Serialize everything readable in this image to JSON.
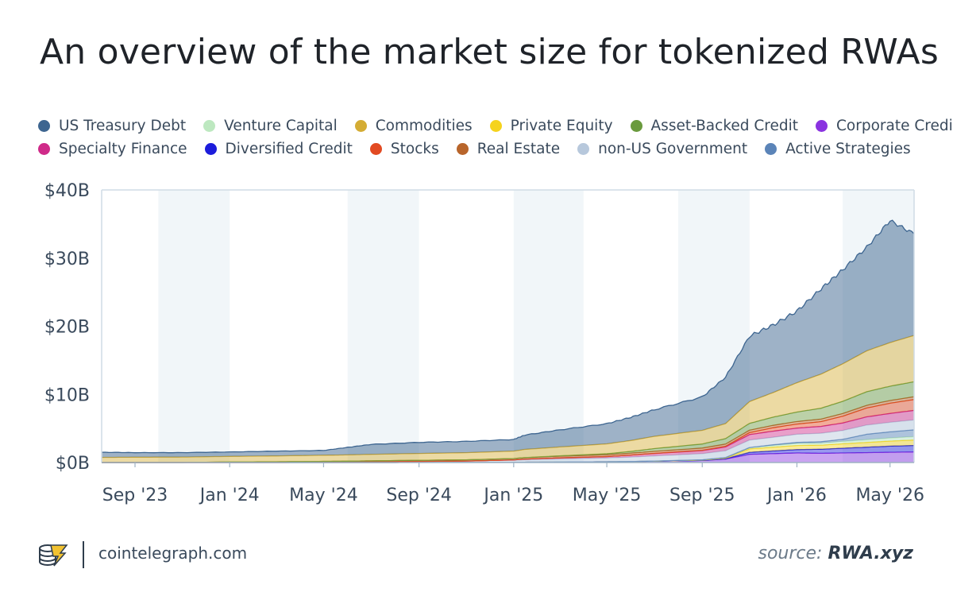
{
  "title": "An overview of the market size for tokenized RWAs",
  "footer": {
    "site": "cointelegraph.com",
    "source_prefix": "source:",
    "source_name": "RWA.xyz"
  },
  "chart_data": {
    "type": "area",
    "stacked": true,
    "title": "An overview of the market size for tokenized RWAs",
    "xlabel": "",
    "ylabel": "",
    "x_tick_labels": [
      "Sep '23",
      "Jan '24",
      "May '24",
      "Sep '24",
      "Jan '25",
      "May '25",
      "Sep '25",
      "Jan '26",
      "May '26"
    ],
    "y_tick_labels": [
      "$0B",
      "$10B",
      "$20B",
      "$30B",
      "$40B"
    ],
    "y_ticks": [
      0,
      10,
      20,
      30,
      40
    ],
    "ylim": [
      0,
      40
    ],
    "x_start": "2023-07-20",
    "x_end": "2026-06-01",
    "unit": "$B",
    "legend_position": "top",
    "shaded_bands": [
      [
        "2023-10-01",
        "2024-01-01"
      ],
      [
        "2024-06-01",
        "2024-09-01"
      ],
      [
        "2025-01-01",
        "2025-04-01"
      ],
      [
        "2025-08-01",
        "2025-11-01"
      ],
      [
        "2026-03-01",
        "2026-06-01"
      ]
    ],
    "dates": [
      "2023-07-20",
      "2023-09-01",
      "2023-11-01",
      "2024-01-01",
      "2024-03-01",
      "2024-05-01",
      "2024-06-01",
      "2024-07-01",
      "2024-09-01",
      "2024-11-01",
      "2025-01-01",
      "2025-01-15",
      "2025-03-01",
      "2025-05-01",
      "2025-06-01",
      "2025-07-01",
      "2025-09-01",
      "2025-10-01",
      "2025-11-01",
      "2025-12-01",
      "2026-01-01",
      "2026-02-01",
      "2026-03-01",
      "2026-04-01",
      "2026-05-01",
      "2026-06-01"
    ],
    "series": [
      {
        "name": "Corporate Credit",
        "color": "#8a33e0",
        "values": [
          0,
          0,
          0,
          0,
          0,
          0,
          0,
          0,
          0.01,
          0.02,
          0.03,
          0.05,
          0.08,
          0.12,
          0.15,
          0.2,
          0.3,
          0.5,
          1.2,
          1.3,
          1.4,
          1.35,
          1.4,
          1.45,
          1.5,
          1.55
        ]
      },
      {
        "name": "Diversified Credit",
        "color": "#1c1cdb",
        "values": [
          0,
          0,
          0,
          0,
          0,
          0,
          0,
          0,
          0,
          0,
          0,
          0,
          0,
          0,
          0,
          0,
          0,
          0.05,
          0.3,
          0.4,
          0.5,
          0.6,
          0.7,
          0.8,
          0.9,
          0.95
        ]
      },
      {
        "name": "Private Equity",
        "color": "#f5d31d",
        "values": [
          0,
          0,
          0,
          0,
          0,
          0,
          0,
          0,
          0,
          0,
          0,
          0,
          0,
          0,
          0,
          0,
          0.05,
          0.1,
          0.5,
          0.55,
          0.6,
          0.6,
          0.65,
          0.7,
          0.75,
          0.8
        ]
      },
      {
        "name": "Venture Capital",
        "color": "#bde8c0",
        "values": [
          0,
          0,
          0,
          0,
          0,
          0,
          0,
          0,
          0,
          0,
          0,
          0,
          0,
          0,
          0,
          0.02,
          0.05,
          0.08,
          0.2,
          0.25,
          0.3,
          0.3,
          0.35,
          0.4,
          0.45,
          0.5
        ]
      },
      {
        "name": "Active Strategies",
        "color": "#5b84b8",
        "values": [
          0,
          0,
          0,
          0,
          0,
          0,
          0,
          0,
          0,
          0,
          0,
          0,
          0,
          0,
          0,
          0,
          0,
          0,
          0,
          0.1,
          0.15,
          0.2,
          0.3,
          0.8,
          0.9,
          1.0
        ]
      },
      {
        "name": "non-US Government",
        "color": "#b7c8dc",
        "values": [
          0,
          0,
          0,
          0,
          0,
          0.02,
          0.05,
          0.1,
          0.15,
          0.2,
          0.3,
          0.35,
          0.45,
          0.55,
          0.65,
          0.75,
          0.9,
          1.0,
          1.1,
          1.1,
          1.2,
          1.25,
          1.3,
          1.35,
          1.4,
          1.45
        ]
      },
      {
        "name": "Specialty Finance",
        "color": "#cf2a89",
        "values": [
          0,
          0,
          0,
          0,
          0,
          0,
          0,
          0,
          0,
          0,
          0.05,
          0.1,
          0.15,
          0.2,
          0.3,
          0.35,
          0.45,
          0.55,
          0.8,
          0.9,
          0.9,
          1.0,
          1.1,
          1.2,
          1.3,
          1.4
        ]
      },
      {
        "name": "Stocks",
        "color": "#e24a22",
        "values": [
          0,
          0,
          0,
          0,
          0,
          0,
          0,
          0,
          0,
          0,
          0,
          0,
          0,
          0,
          0,
          0.02,
          0.05,
          0.1,
          0.3,
          0.5,
          0.6,
          0.7,
          1.0,
          1.3,
          1.5,
          1.6
        ]
      },
      {
        "name": "Real Estate",
        "color": "#b8652b",
        "values": [
          0,
          0,
          0,
          0.1,
          0.12,
          0.15,
          0.15,
          0.15,
          0.17,
          0.18,
          0.2,
          0.22,
          0.25,
          0.27,
          0.28,
          0.3,
          0.32,
          0.33,
          0.35,
          0.35,
          0.36,
          0.37,
          0.38,
          0.39,
          0.4,
          0.4
        ]
      },
      {
        "name": "Asset-Backed Credit",
        "color": "#6a9a3d",
        "values": [
          0,
          0,
          0,
          0,
          0,
          0,
          0,
          0,
          0,
          0,
          0,
          0,
          0.05,
          0.15,
          0.25,
          0.4,
          0.6,
          0.8,
          1.0,
          1.2,
          1.4,
          1.6,
          1.8,
          2.0,
          2.1,
          2.2
        ]
      },
      {
        "name": "Commodities",
        "color": "#d4ac34",
        "values": [
          0.75,
          0.78,
          0.8,
          0.8,
          0.85,
          0.9,
          0.92,
          0.95,
          1.0,
          1.05,
          1.1,
          1.2,
          1.3,
          1.45,
          1.6,
          1.8,
          2.0,
          2.2,
          3.2,
          3.6,
          4.3,
          5.0,
          5.5,
          6.0,
          6.4,
          6.8
        ]
      },
      {
        "name": "US Treasury Debt",
        "color": "#3d6590",
        "values": [
          0.75,
          0.67,
          0.65,
          0.65,
          0.7,
          0.7,
          1.1,
          1.45,
          1.63,
          1.65,
          1.7,
          2.1,
          2.5,
          2.96,
          3.4,
          3.9,
          4.9,
          6.8,
          9.6,
          9.9,
          10.5,
          12.5,
          13.8,
          15.2,
          17.9,
          14.9
        ]
      }
    ]
  },
  "legend": {
    "rows": [
      [
        {
          "label": "US Treasury Debt",
          "color": "#3d6590"
        },
        {
          "label": "Venture Capital",
          "color": "#bde8c0"
        },
        {
          "label": "Commodities",
          "color": "#d4ac34"
        },
        {
          "label": "Private Equity",
          "color": "#f5d31d"
        },
        {
          "label": "Asset-Backed Credit",
          "color": "#6a9a3d"
        },
        {
          "label": "Corporate Credit",
          "color": "#8a33e0"
        }
      ],
      [
        {
          "label": "Specialty Finance",
          "color": "#cf2a89"
        },
        {
          "label": "Diversified Credit",
          "color": "#1c1cdb"
        },
        {
          "label": "Stocks",
          "color": "#e24a22"
        },
        {
          "label": "Real Estate",
          "color": "#b8652b"
        },
        {
          "label": "non-US Government",
          "color": "#b7c8dc"
        },
        {
          "label": "Active Strategies",
          "color": "#5b84b8"
        }
      ]
    ]
  }
}
